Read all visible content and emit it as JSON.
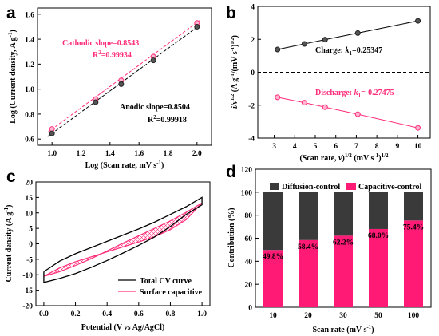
{
  "chart_data": [
    {
      "panel": "a",
      "type": "scatter",
      "xlabel": "Log (Scan rate, mV s",
      "xlabel_sup": "-1",
      "xlabel_end": ")",
      "ylabel": "Log (Current density, A g",
      "ylabel_sup": "-1",
      "ylabel_end": ")",
      "xlim": [
        0.9,
        2.1
      ],
      "ylim": [
        0.55,
        1.65
      ],
      "xticks": [
        "1.0",
        "1.2",
        "1.4",
        "1.6",
        "1.8",
        "2.0"
      ],
      "yticks": [
        "0.6",
        "0.8",
        "1.0",
        "1.2",
        "1.4",
        "1.6"
      ],
      "series": [
        {
          "name": "Cathodic",
          "color": "#ff2d7a",
          "marker": "circle-pink",
          "x": [
            1.0,
            1.301,
            1.477,
            1.699,
            2.0
          ],
          "y": [
            0.68,
            0.92,
            1.07,
            1.26,
            1.53
          ],
          "fit_slope": 0.8543,
          "fit_intercept": -0.175
        },
        {
          "name": "Anodic",
          "color": "#000000",
          "marker": "circle-dark",
          "x": [
            1.0,
            1.301,
            1.477,
            1.699,
            2.0
          ],
          "y": [
            0.645,
            0.895,
            1.04,
            1.23,
            1.5
          ],
          "fit_slope": 0.8504,
          "fit_intercept": -0.205
        }
      ],
      "annotations": {
        "cathodic_slope": "Cathodic slope=0.8543",
        "cathodic_r2_prefix": "R",
        "cathodic_r2_sup": "2",
        "cathodic_r2_value": "=0.99934",
        "anodic_slope": "Anodic slope=0.8504",
        "anodic_r2_prefix": "R",
        "anodic_r2_sup": "2",
        "anodic_r2_value": "=0.99918"
      }
    },
    {
      "panel": "b",
      "type": "line",
      "xlabel": "(Scan rate, ",
      "xlabel_nu": "ν",
      "xlabel_mid": ")",
      "xlabel_sup": "1/2",
      "xlabel_end": " (mV s",
      "xlabel_sup2": "-1",
      "xlabel_end2": ")",
      "xlabel_sup3": "1/2",
      "ylabel": "i/v",
      "ylabel_sup": "1/2",
      "ylabel_mid": " (A g",
      "ylabel_sup2": "-1",
      "ylabel_mid2": "/(mV s",
      "ylabel_sup3": "-1",
      "ylabel_end": ")",
      "ylabel_sup4": "1/2",
      "ylabel_end2": ")",
      "xlim": [
        2.2,
        10.6
      ],
      "ylim": [
        -4,
        4
      ],
      "xticks": [
        "3",
        "4",
        "5",
        "6",
        "7",
        "8",
        "9",
        "10"
      ],
      "yticks": [
        "-4",
        "-2",
        "0",
        "2",
        "4"
      ],
      "zero_line": true,
      "series": [
        {
          "name": "Charge",
          "color": "#000000",
          "marker": "circle-dark",
          "x": [
            3.162,
            4.472,
            5.477,
            7.071,
            10.0
          ],
          "y": [
            1.38,
            1.72,
            1.98,
            2.38,
            3.12
          ]
        },
        {
          "name": "Discharge",
          "color": "#ff2d7a",
          "marker": "circle-pink",
          "x": [
            3.162,
            4.472,
            5.477,
            7.071,
            10.0
          ],
          "y": [
            -1.52,
            -1.85,
            -2.12,
            -2.55,
            -3.38
          ]
        }
      ],
      "annotations": {
        "charge_prefix": "Charge: ",
        "charge_k": "k",
        "charge_sub": "1",
        "charge_value": "=0.25347",
        "discharge_prefix": "Discharge: ",
        "discharge_k": "k",
        "discharge_sub": "1",
        "discharge_value": "=-0.27475"
      }
    },
    {
      "panel": "c",
      "type": "line",
      "xlabel": "Potential (V ",
      "xlabel_vs": "vs",
      "xlabel_end": " Ag/AgCl)",
      "ylabel": "Current density (A g",
      "ylabel_sup": "-1",
      "ylabel_end": ")",
      "xlim": [
        -0.05,
        1.05
      ],
      "ylim": [
        -20,
        20
      ],
      "xticks": [
        "0.0",
        "0.2",
        "0.4",
        "0.6",
        "0.8",
        "1.0"
      ],
      "yticks": [
        "-20",
        "-15",
        "-10",
        "-5",
        "0",
        "5",
        "10",
        "15",
        "20"
      ],
      "legend": "bottom-right",
      "series": [
        {
          "name": "Total CV curve",
          "color": "#000000",
          "x": [
            0.0,
            0.1,
            0.2,
            0.3,
            0.4,
            0.5,
            0.6,
            0.7,
            0.8,
            0.9,
            1.0,
            1.0,
            0.9,
            0.8,
            0.7,
            0.6,
            0.5,
            0.4,
            0.3,
            0.2,
            0.1,
            0.0,
            0.0
          ],
          "y": [
            -9,
            -5.6,
            -3.2,
            -1.2,
            0.8,
            2.8,
            4.8,
            7,
            9.5,
            12,
            15,
            12.6,
            9.5,
            5.6,
            2.2,
            -0.5,
            -3,
            -5.4,
            -7.6,
            -9.6,
            -11.2,
            -12.5,
            -9
          ]
        },
        {
          "name": "Surface capacitive",
          "color": "#ff2d7a",
          "fill": "crosshatch",
          "x": [
            0.0,
            0.1,
            0.2,
            0.3,
            0.4,
            0.5,
            0.6,
            0.7,
            0.8,
            0.9,
            1.0,
            0.9,
            0.8,
            0.7,
            0.6,
            0.5,
            0.4,
            0.3,
            0.2,
            0.1,
            0.0
          ],
          "y": [
            -10.5,
            -7.8,
            -5.8,
            -4.2,
            -2.6,
            -1.0,
            0.6,
            2.3,
            4.6,
            7.8,
            13.2,
            10.2,
            7.4,
            5.0,
            2.6,
            0.2,
            -2.3,
            -4.8,
            -7.0,
            -9.0,
            -10.5
          ]
        }
      ]
    },
    {
      "panel": "d",
      "type": "bar",
      "stacked": true,
      "categories": [
        "10",
        "20",
        "30",
        "50",
        "100"
      ],
      "xlabel": "Scan rate (mV s",
      "xlabel_sup": "-1",
      "xlabel_end": ")",
      "ylabel": "Contribution (%)",
      "ylim": [
        0,
        120
      ],
      "yticks": [
        "0",
        "20",
        "40",
        "60",
        "80",
        "100",
        "120"
      ],
      "legend": "top",
      "series": [
        {
          "name": "Capacitive-control",
          "color": "#ff1a75",
          "values": [
            49.8,
            58.4,
            62.2,
            68.0,
            75.4
          ],
          "labels": [
            "49.8%",
            "58.4%",
            "62.2%",
            "68.0%",
            "75.4%"
          ]
        },
        {
          "name": "Diffusion-control",
          "color": "#3a3a3a",
          "values": [
            50.2,
            41.6,
            37.8,
            32.0,
            24.6
          ]
        }
      ]
    }
  ]
}
